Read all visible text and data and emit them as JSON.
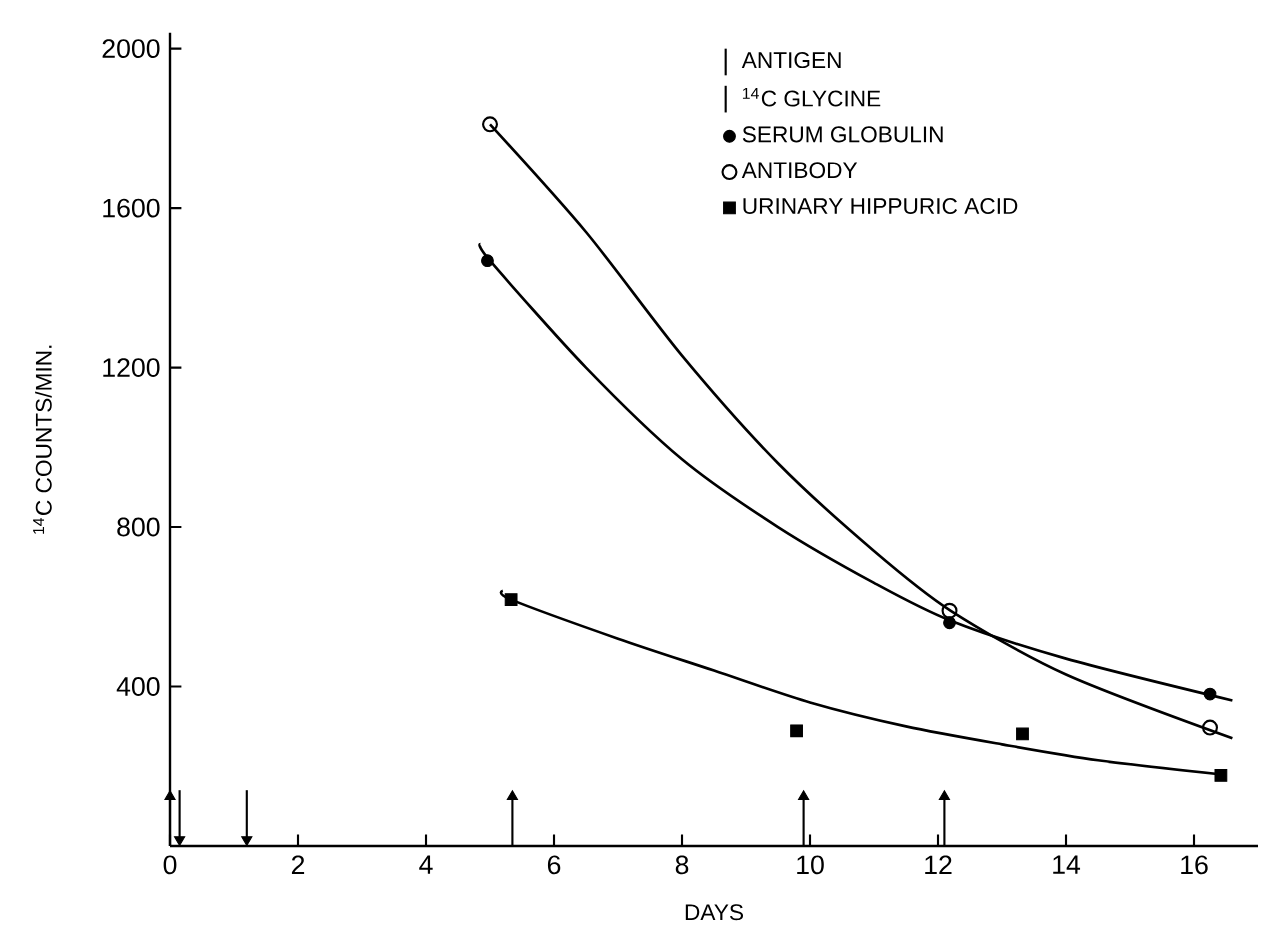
{
  "chart_data": {
    "type": "scatter",
    "xlabel": "DAYS",
    "ylabel": "$^{14}$C COUNTS/MIN.",
    "xlim": [
      0,
      17
    ],
    "ylim": [
      0,
      2040
    ],
    "xticks": [
      0,
      2,
      4,
      6,
      8,
      10,
      12,
      14,
      16
    ],
    "yticks": [
      400,
      800,
      1200,
      1600,
      2000
    ],
    "grid": false,
    "legend": "top right",
    "series": [
      {
        "name": "ANTIGEN",
        "type": "scatter",
        "marker": "triangle",
        "color": "#000000",
        "x": [
          0,
          5.35,
          9.9,
          12.1
        ],
        "values": [
          124,
          124,
          124,
          124
        ],
        "errors": [
          [
            0,
            124
          ],
          [
            0,
            124
          ],
          [
            0,
            124
          ],
          [
            0,
            124
          ]
        ]
      },
      {
        "name": "$^{14}$C GLYCINE",
        "type": "scatter",
        "marker": "triangle",
        "color": "#000000",
        "x": [
          0.15,
          1.2
        ],
        "values": [
          16,
          16
        ],
        "errors": [
          [
            16,
            140
          ],
          [
            16,
            140
          ]
        ]
      },
      {
        "name": "SERUM GLOBULIN",
        "marker": "circle",
        "color": "#000000",
        "x": [
          4.96,
          12.18,
          16.25
        ],
        "values": [
          1468,
          560,
          381
        ]
      },
      {
        "name": "ANTIBODY",
        "marker": "open circle",
        "color": "#000000",
        "x": [
          5.0,
          12.18,
          16.25
        ],
        "values": [
          1810,
          590,
          297
        ]
      },
      {
        "name": "URINARY HIPPURIC ACID",
        "marker": "square",
        "color": "#000000",
        "x": [
          5.33,
          9.79,
          13.32,
          16.42
        ],
        "values": [
          618,
          289,
          281,
          177
        ]
      },
      {
        "type": "line",
        "color": "#000000",
        "x": [
          4.85,
          5.0,
          6.5,
          8.0,
          9.5,
          11.0,
          12.2,
          14.0,
          16.6
        ],
        "values": [
          1510,
          1468,
          1200,
          970,
          800,
          660,
          565,
          470,
          365
        ]
      },
      {
        "type": "line",
        "color": "#000000",
        "x": [
          5.0,
          6.5,
          8.0,
          9.5,
          11.0,
          12.2,
          14.0,
          16.6
        ],
        "values": [
          1810,
          1540,
          1230,
          960,
          740,
          590,
          430,
          270
        ]
      },
      {
        "type": "line",
        "color": "#000000",
        "x": [
          5.2,
          5.33,
          7.0,
          8.5,
          10.0,
          11.5,
          13.0,
          14.5,
          16.4
        ],
        "values": [
          640,
          618,
          520,
          440,
          360,
          300,
          255,
          215,
          180
        ]
      }
    ]
  }
}
